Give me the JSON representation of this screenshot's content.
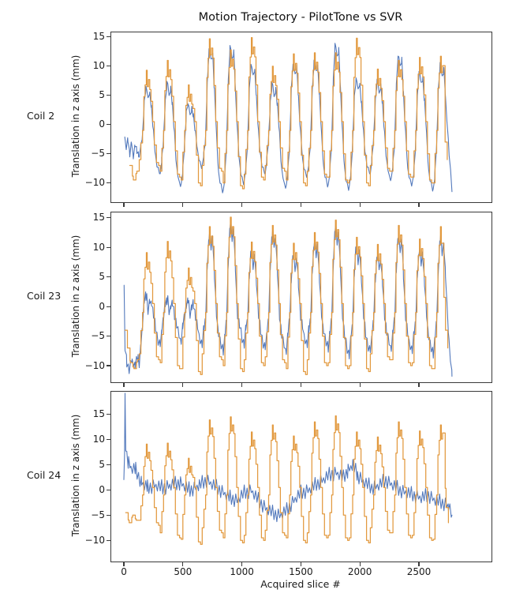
{
  "title": "Motion Trajectory - PilotTone vs SVR",
  "xlabel": "Acquired slice #",
  "ylabel": "Translation in z axis (mm)",
  "x_ticks": [
    0,
    500,
    1000,
    1500,
    2000,
    2500
  ],
  "x_range": [
    -107,
    3115
  ],
  "colors": {
    "pilottone": "#5379bc",
    "svr": "#e2993e",
    "axis": "#3a3a3a",
    "text": "#1a1a1a"
  },
  "chart_data": [
    {
      "type": "line",
      "label": "Coil 2",
      "ylim": [
        -13.3,
        15.8
      ],
      "yticks": [
        15,
        10,
        5,
        0,
        -5,
        -10
      ],
      "series": [
        {
          "name": "PilotTone",
          "color_key": "pilottone",
          "kind": "wave",
          "period": 178,
          "phase": 130,
          "noise": 0.55,
          "head": [
            [
              8,
              -2.5
            ],
            [
              20,
              -4
            ],
            [
              35,
              -2.5
            ],
            [
              50,
              -5
            ],
            [
              65,
              -3
            ],
            [
              80,
              -5.5
            ],
            [
              95,
              -3.5
            ],
            [
              110,
              -4.5
            ],
            [
              125,
              -5
            ]
          ],
          "peaks": [
            6.5,
            7.2,
            3.6,
            13.0,
            13.4,
            10.4,
            7.0,
            10.6,
            11.0,
            13.8,
            8.0,
            7.6,
            12.0,
            9.0,
            10.4
          ],
          "troughs": [
            -6,
            -8.5,
            -10.5,
            -7.5,
            -11.5,
            -10,
            -8.5,
            -10.8,
            -9,
            -10.5,
            -11,
            -8.5,
            -9.5,
            -10.5,
            -11.2
          ],
          "x_end": 2740,
          "tail": [
            [
              2756,
              -5
            ],
            [
              2780,
              -11.5
            ]
          ]
        },
        {
          "name": "SVR",
          "color_key": "svr",
          "kind": "step",
          "period": 178,
          "phase": 130,
          "head": [
            [
              50,
              -7
            ],
            [
              80,
              -9.5
            ],
            [
              110,
              -8
            ]
          ],
          "peaks": [
            8.0,
            9.7,
            5.5,
            13.4,
            11.5,
            13.6,
            8.7,
            10.8,
            11.0,
            11.0,
            13.5,
            8.2,
            9.7,
            10.2,
            10.4
          ],
          "troughs": [
            -7,
            -9,
            -10.5,
            -8,
            -11,
            -9.5,
            -8,
            -10.5,
            -9,
            -10,
            -10.5,
            -8,
            -9,
            -10,
            -11
          ],
          "x_end": 2705,
          "tail": [
            [
              2722,
              -3
            ],
            [
              2740,
              -6
            ]
          ]
        }
      ]
    },
    {
      "type": "line",
      "label": "Coil 23",
      "ylim": [
        -12.8,
        15.9
      ],
      "yticks": [
        15,
        10,
        5,
        0,
        -5,
        -10
      ],
      "series": [
        {
          "name": "PilotTone",
          "color_key": "pilottone",
          "kind": "wave",
          "period": 178,
          "phase": 130,
          "noise": 0.85,
          "head": [
            [
              2,
              3
            ],
            [
              10,
              -7
            ],
            [
              25,
              -9.5
            ],
            [
              45,
              -10.5
            ],
            [
              70,
              -9
            ],
            [
              95,
              -10
            ],
            [
              120,
              -8.5
            ]
          ],
          "peaks": [
            1.8,
            1.2,
            0.9,
            12.3,
            14.0,
            9.4,
            12.6,
            8.8,
            11.0,
            13.4,
            10.2,
            8.8,
            12.0,
            9.6,
            11.6
          ],
          "troughs": [
            -9.5,
            -6.5,
            -5.8,
            -6.5,
            -7.5,
            -6.2,
            -7,
            -7.5,
            -6.5,
            -7,
            -8,
            -7.5,
            -7,
            -7.5,
            -8
          ],
          "x_end": 2735,
          "tail": [
            [
              2755,
              -6
            ],
            [
              2780,
              -11.8
            ]
          ]
        },
        {
          "name": "SVR",
          "color_key": "svr",
          "kind": "step",
          "period": 178,
          "phase": 130,
          "head": [
            [
              10,
              -4
            ],
            [
              30,
              -7
            ],
            [
              55,
              -9.5
            ],
            [
              85,
              -10.5
            ],
            [
              115,
              -9
            ]
          ],
          "peaks": [
            7.8,
            9.7,
            5.2,
            12.2,
            13.8,
            9.6,
            12.4,
            9.4,
            11.2,
            13.3,
            10.4,
            9.2,
            12.4,
            10.1,
            12.2
          ],
          "troughs": [
            -9,
            -10.5,
            -11.5,
            -9,
            -11,
            -10,
            -9.5,
            -11.5,
            -10,
            -10.5,
            -11,
            -9,
            -10,
            -10.5,
            -11.5
          ],
          "x_end": 2700,
          "tail": [
            [
              2725,
              -4
            ],
            [
              2745,
              -7
            ]
          ]
        }
      ]
    },
    {
      "type": "line",
      "label": "Coil 24",
      "ylim": [
        -14.2,
        19.5
      ],
      "yticks": [
        15,
        10,
        5,
        0,
        -5,
        -10
      ],
      "series": [
        {
          "name": "PilotTone",
          "color_key": "pilottone",
          "kind": "poly",
          "noise": 1.5,
          "points": [
            [
              0,
              1
            ],
            [
              6,
              8
            ],
            [
              10,
              17.7
            ],
            [
              16,
              9
            ],
            [
              25,
              7
            ],
            [
              40,
              5.5
            ],
            [
              60,
              4.5
            ],
            [
              100,
              4
            ],
            [
              150,
              1.5
            ],
            [
              200,
              0.5
            ],
            [
              260,
              1
            ],
            [
              330,
              0.5
            ],
            [
              400,
              1
            ],
            [
              480,
              1.5
            ],
            [
              560,
              0
            ],
            [
              640,
              1
            ],
            [
              700,
              2
            ],
            [
              760,
              1
            ],
            [
              820,
              0
            ],
            [
              900,
              -1.5
            ],
            [
              960,
              -2
            ],
            [
              1020,
              -0.5
            ],
            [
              1080,
              0
            ],
            [
              1140,
              -2
            ],
            [
              1200,
              -3.5
            ],
            [
              1260,
              -4.5
            ],
            [
              1320,
              -5
            ],
            [
              1380,
              -4
            ],
            [
              1440,
              -2
            ],
            [
              1500,
              -0.5
            ],
            [
              1560,
              0
            ],
            [
              1620,
              1
            ],
            [
              1680,
              2
            ],
            [
              1740,
              3
            ],
            [
              1800,
              3.5
            ],
            [
              1860,
              2.5
            ],
            [
              1900,
              4
            ],
            [
              1940,
              5
            ],
            [
              1980,
              3
            ],
            [
              2040,
              1.5
            ],
            [
              2100,
              0.5
            ],
            [
              2160,
              1
            ],
            [
              2220,
              2
            ],
            [
              2280,
              1
            ],
            [
              2340,
              0
            ],
            [
              2400,
              -0.5
            ],
            [
              2460,
              -1
            ],
            [
              2520,
              -1.5
            ],
            [
              2580,
              -1
            ],
            [
              2640,
              -2
            ],
            [
              2700,
              -2.5
            ],
            [
              2750,
              -3
            ],
            [
              2780,
              -5
            ]
          ]
        },
        {
          "name": "SVR",
          "color_key": "svr",
          "kind": "step",
          "period": 178,
          "phase": 130,
          "head": [
            [
              15,
              -4.5
            ],
            [
              45,
              -6.5
            ],
            [
              75,
              -5
            ],
            [
              105,
              -6
            ]
          ],
          "peaks": [
            7.8,
            8.0,
            5.0,
            12.6,
            13.2,
            10.2,
            11.6,
            9.4,
            12.2,
            13.4,
            10.2,
            9.2,
            12.2,
            10.4,
            11.6
          ],
          "troughs": [
            -7,
            -9.5,
            -10.8,
            -8.5,
            -10.5,
            -10,
            -9,
            -10.5,
            -9.5,
            -10,
            -10.5,
            -8.5,
            -9.5,
            -10,
            -10.8
          ],
          "x_end": 2710,
          "tail": [
            [
              2730,
              -3.5
            ],
            [
              2750,
              -6.5
            ]
          ]
        }
      ]
    }
  ]
}
